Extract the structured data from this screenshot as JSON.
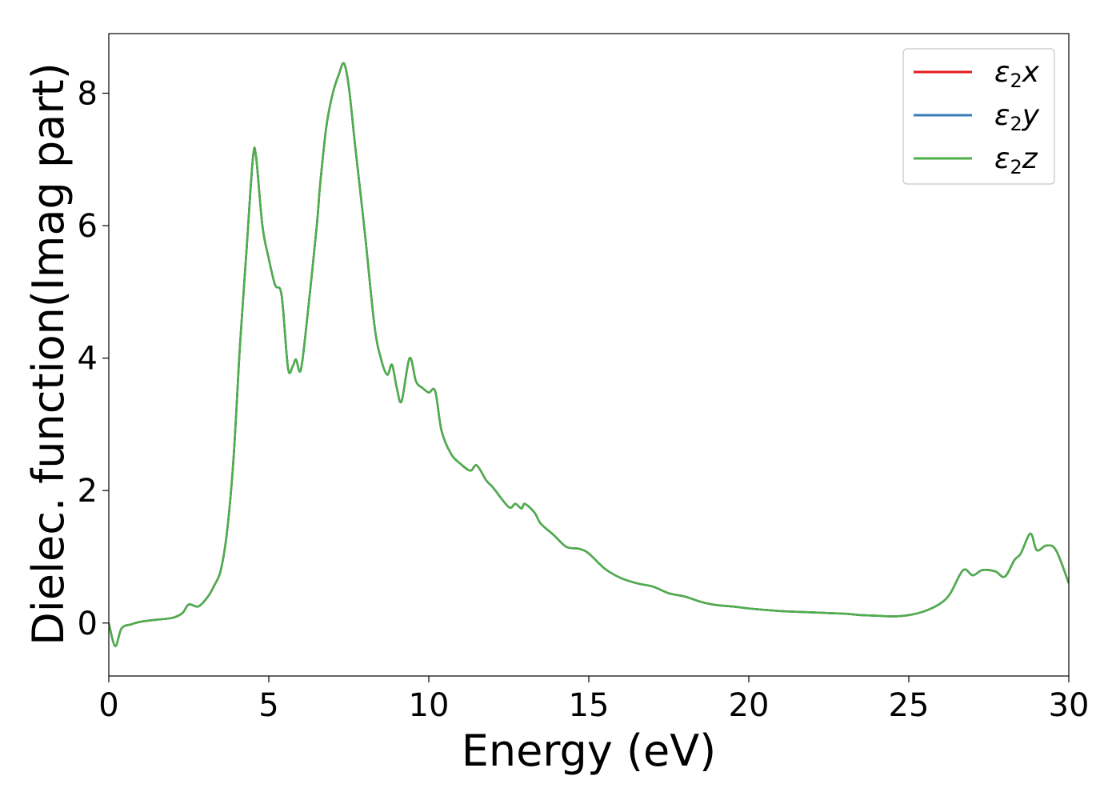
{
  "chart_data": {
    "type": "line",
    "xlabel": "Energy (eV)",
    "ylabel": "Dielec. function(Imag part)",
    "xlim": [
      0,
      30
    ],
    "ylim": [
      -0.8,
      8.9
    ],
    "xticks": [
      0,
      5,
      10,
      15,
      20,
      25,
      30
    ],
    "xtick_labels": [
      "0",
      "5",
      "10",
      "15",
      "20",
      "25",
      "30"
    ],
    "yticks": [
      0,
      2,
      4,
      6,
      8
    ],
    "ytick_labels": [
      "0",
      "2",
      "4",
      "6",
      "8"
    ],
    "grid": false,
    "legend_position": "top-right",
    "legend": [
      {
        "base": "ε",
        "sub": "2",
        "tail": "x",
        "color": "#e41a1c"
      },
      {
        "base": "ε",
        "sub": "2",
        "tail": "y",
        "color": "#377eb8"
      },
      {
        "base": "ε",
        "sub": "2",
        "tail": "z",
        "color": "#4daf4a"
      }
    ],
    "series": [
      {
        "name": "ε2x",
        "color": "#e41a1c"
      },
      {
        "name": "ε2y",
        "color": "#377eb8"
      },
      {
        "name": "ε2z",
        "color": "#4daf4a"
      }
    ],
    "x": [
      0,
      0.2,
      0.4,
      0.7,
      1.0,
      1.5,
      2.0,
      2.3,
      2.5,
      2.8,
      3.1,
      3.3,
      3.5,
      3.7,
      3.9,
      4.1,
      4.3,
      4.5,
      4.6,
      4.8,
      5.0,
      5.2,
      5.4,
      5.6,
      5.75,
      5.85,
      6.0,
      6.2,
      6.5,
      6.6,
      6.8,
      7.0,
      7.2,
      7.35,
      7.5,
      7.7,
      8.0,
      8.3,
      8.5,
      8.7,
      8.85,
      9.0,
      9.15,
      9.4,
      9.6,
      9.8,
      10.0,
      10.2,
      10.4,
      10.7,
      11.0,
      11.3,
      11.5,
      11.8,
      12.0,
      12.5,
      12.7,
      12.9,
      13.0,
      13.3,
      13.5,
      13.9,
      14.3,
      14.7,
      15.0,
      15.5,
      16.0,
      16.5,
      17.0,
      17.5,
      18.0,
      18.5,
      19.0,
      19.5,
      20.0,
      21.0,
      21.5,
      22.0,
      22.5,
      23.0,
      23.5,
      24.0,
      24.5,
      25.0,
      25.5,
      26.0,
      26.3,
      26.7,
      27.0,
      27.3,
      27.7,
      28.0,
      28.3,
      28.5,
      28.8,
      29.0,
      29.3,
      29.6,
      30.0
    ],
    "y": [
      0.0,
      -0.35,
      -0.08,
      -0.02,
      0.02,
      0.05,
      0.08,
      0.15,
      0.28,
      0.25,
      0.4,
      0.57,
      0.8,
      1.4,
      2.5,
      4.2,
      5.6,
      7.0,
      7.05,
      6.0,
      5.5,
      5.1,
      4.95,
      3.85,
      3.88,
      3.98,
      3.82,
      4.6,
      6.0,
      6.6,
      7.5,
      8.0,
      8.3,
      8.45,
      8.1,
      7.2,
      5.9,
      4.5,
      4.0,
      3.75,
      3.9,
      3.55,
      3.35,
      4.0,
      3.65,
      3.55,
      3.48,
      3.5,
      2.9,
      2.55,
      2.4,
      2.3,
      2.38,
      2.15,
      2.05,
      1.75,
      1.8,
      1.73,
      1.8,
      1.67,
      1.5,
      1.33,
      1.15,
      1.12,
      1.05,
      0.82,
      0.68,
      0.6,
      0.55,
      0.45,
      0.4,
      0.32,
      0.27,
      0.25,
      0.22,
      0.18,
      0.17,
      0.16,
      0.15,
      0.14,
      0.12,
      0.11,
      0.1,
      0.12,
      0.18,
      0.3,
      0.45,
      0.8,
      0.72,
      0.8,
      0.78,
      0.7,
      0.95,
      1.05,
      1.35,
      1.1,
      1.17,
      1.1,
      0.6
    ]
  }
}
